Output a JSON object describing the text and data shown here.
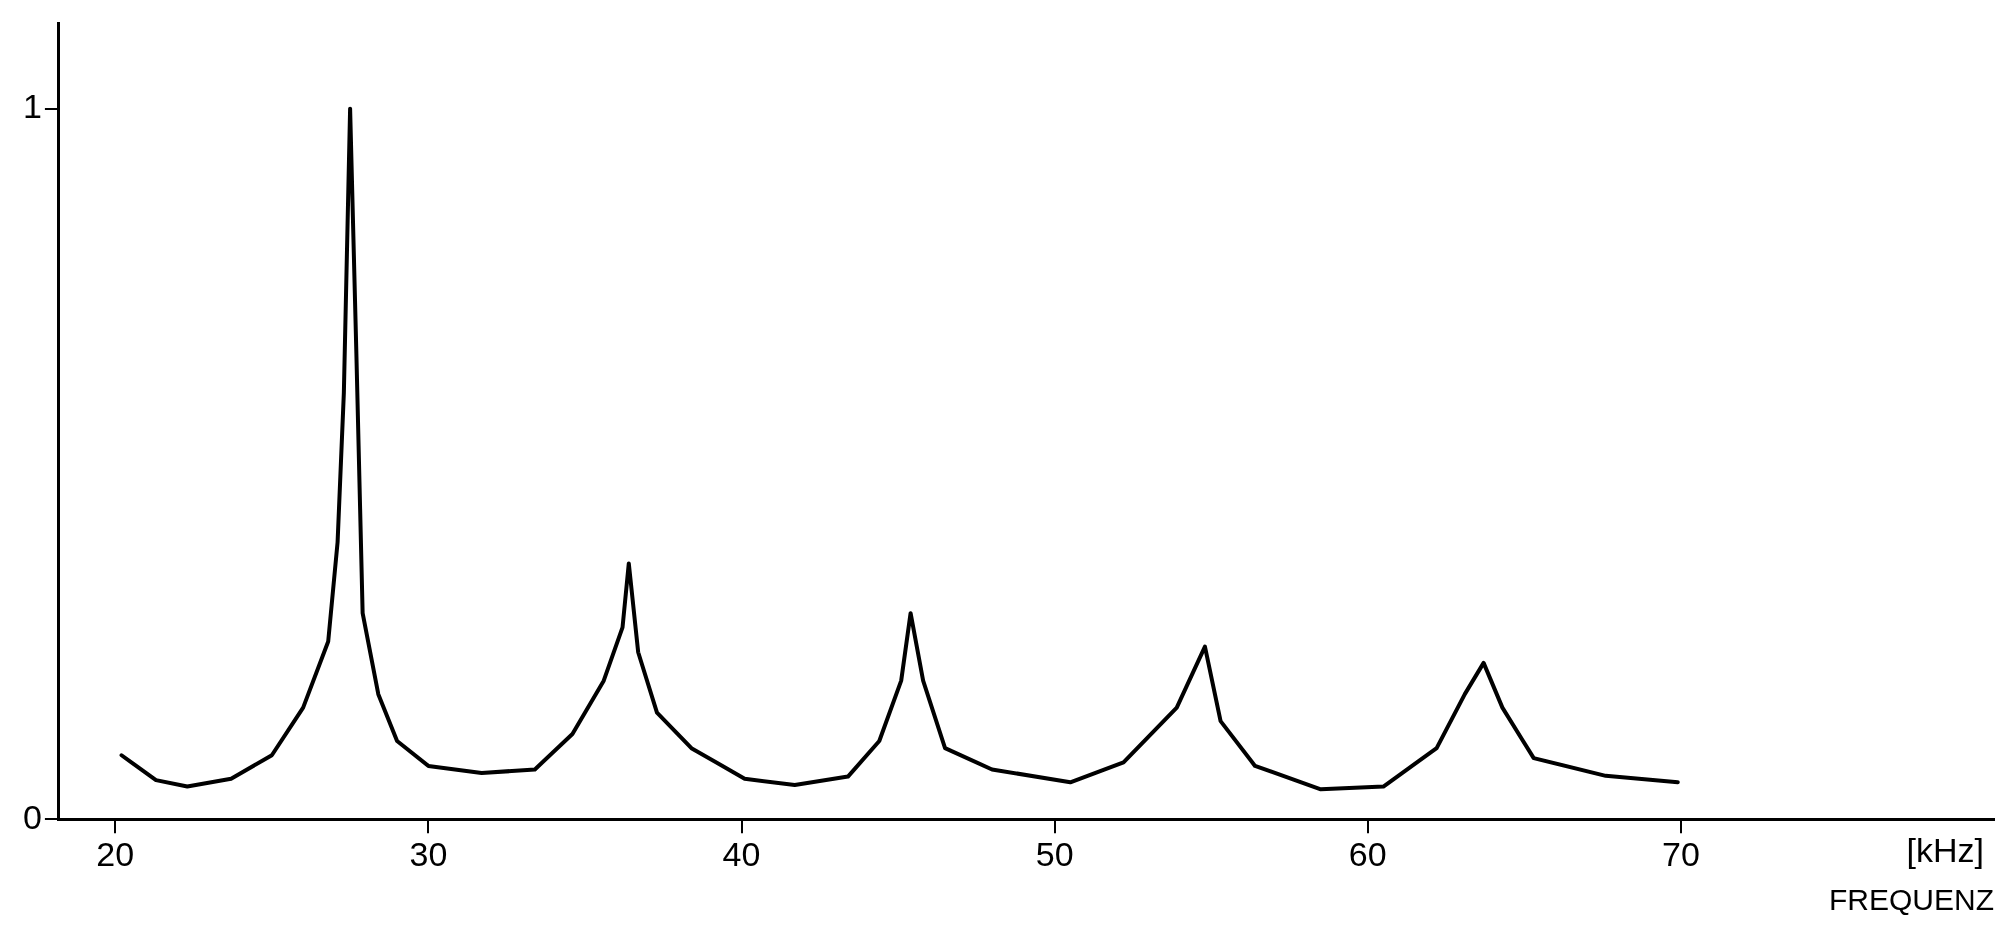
{
  "chart_data": {
    "type": "line",
    "xlabel": "FREQUENZ",
    "annotations": [
      "[kHz]"
    ],
    "xlim": [
      18.2,
      80
    ],
    "xticks": [
      20,
      30,
      40,
      50,
      60,
      70
    ],
    "ylim": [
      0,
      1.12
    ],
    "yticks": [
      0,
      1
    ],
    "grid": false,
    "legend": false,
    "marker": "none",
    "line_style": "solid",
    "relative": false,
    "series": [
      {
        "color": "#000000",
        "x": [
          20.2,
          21.3,
          22.3,
          23.7,
          25.0,
          26.0,
          26.8,
          27.1,
          27.3,
          27.5,
          27.7,
          27.9,
          28.4,
          29.0,
          30.0,
          31.7,
          33.4,
          34.6,
          35.6,
          36.2,
          36.4,
          36.7,
          37.3,
          38.4,
          40.1,
          41.7,
          43.4,
          44.4,
          45.1,
          45.4,
          45.8,
          46.5,
          48.0,
          50.5,
          52.2,
          53.9,
          54.8,
          55.3,
          56.4,
          58.5,
          60.5,
          62.2,
          63.1,
          63.7,
          64.3,
          65.3,
          67.6,
          69.9
        ],
        "values": [
          0.09,
          0.055,
          0.046,
          0.057,
          0.09,
          0.157,
          0.25,
          0.39,
          0.6,
          1.0,
          0.655,
          0.29,
          0.176,
          0.11,
          0.075,
          0.065,
          0.07,
          0.12,
          0.195,
          0.27,
          0.36,
          0.235,
          0.15,
          0.1,
          0.057,
          0.048,
          0.06,
          0.11,
          0.195,
          0.29,
          0.195,
          0.1,
          0.07,
          0.052,
          0.08,
          0.157,
          0.243,
          0.138,
          0.075,
          0.042,
          0.046,
          0.1,
          0.176,
          0.22,
          0.157,
          0.086,
          0.061,
          0.052
        ]
      }
    ]
  }
}
